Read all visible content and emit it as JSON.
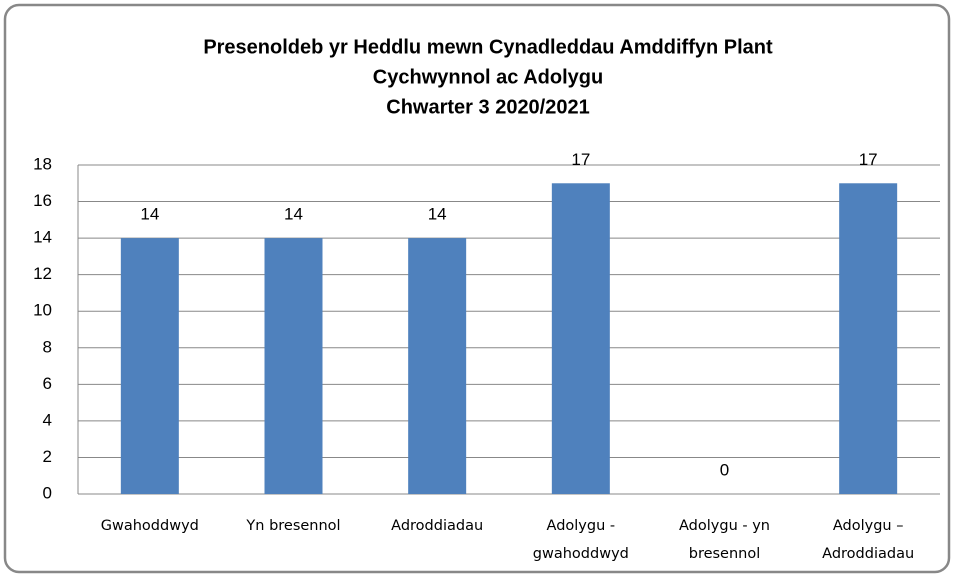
{
  "chart_data": {
    "type": "bar",
    "title": [
      "Presenoldeb yr Heddlu mewn Cynadleddau Amddiffyn Plant",
      "Cychwynnol ac Adolygu",
      "Chwarter 3  2020/2021"
    ],
    "categories": [
      "Gwahoddwyd",
      "Yn bresennol",
      "Adroddiadau",
      "Adolygu - gwahoddwyd",
      "Adolygu - yn bresennol",
      "Adolygu – Adroddiadau"
    ],
    "values": [
      14,
      14,
      14,
      17,
      0,
      17
    ],
    "color": "#4f81bd",
    "ylim": [
      0,
      18
    ],
    "yticks": [
      0,
      2,
      4,
      6,
      8,
      10,
      12,
      14,
      16,
      18
    ],
    "grid": true
  }
}
